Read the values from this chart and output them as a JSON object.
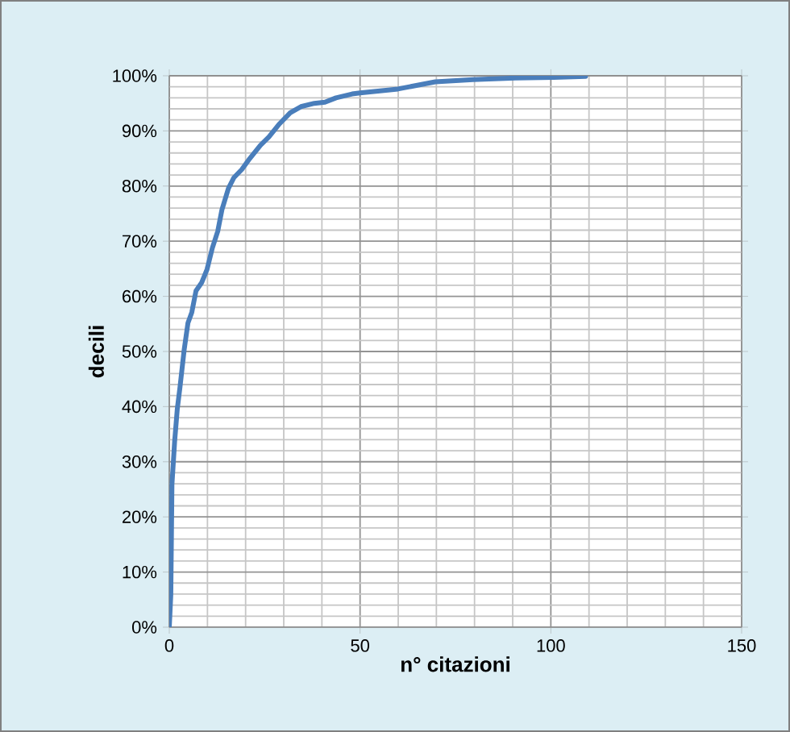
{
  "chart_data": {
    "type": "line",
    "xlabel": "n° citazioni",
    "ylabel": "decili",
    "x": [
      0,
      0.4,
      0.7,
      1.4,
      2.1,
      2.8,
      3.9,
      4.9,
      5.9,
      7.0,
      8.5,
      9.9,
      11.3,
      12.7,
      13.8,
      15.5,
      16.9,
      19.0,
      21.1,
      23.9,
      26.1,
      28.9,
      31.7,
      34.5,
      38.0,
      40.8,
      43.7,
      47.9,
      50.0,
      59.9,
      69.7,
      79.6,
      90.8,
      100.7,
      109.1
    ],
    "series": [
      {
        "color": "#4a7ebb",
        "values": [
          0,
          5.9,
          25.9,
          33.7,
          39.6,
          43.5,
          50.3,
          55.2,
          57.1,
          61.0,
          62.5,
          64.9,
          68.8,
          71.8,
          75.7,
          79.6,
          81.5,
          83.0,
          85.0,
          87.4,
          88.9,
          91.3,
          93.3,
          94.4,
          95.0,
          95.2,
          96.0,
          96.7,
          96.9,
          97.6,
          98.9,
          99.3,
          99.6,
          99.7,
          99.9
        ]
      }
    ],
    "xlim": [
      0,
      150
    ],
    "xticks": [
      0,
      50,
      100,
      150
    ],
    "ylim": [
      0,
      100
    ],
    "yticks": [
      {
        "value": 0,
        "label": "0%"
      },
      {
        "value": 10,
        "label": "10%"
      },
      {
        "value": 20,
        "label": "20%"
      },
      {
        "value": 30,
        "label": "30%"
      },
      {
        "value": 40,
        "label": "40%"
      },
      {
        "value": 50,
        "label": "50%"
      },
      {
        "value": 60,
        "label": "60%"
      },
      {
        "value": 70,
        "label": "70%"
      },
      {
        "value": 80,
        "label": "80%"
      },
      {
        "value": 90,
        "label": "90%"
      },
      {
        "value": 100,
        "label": "100%"
      }
    ],
    "grid": true,
    "marker": "none",
    "line_style": "solid"
  }
}
